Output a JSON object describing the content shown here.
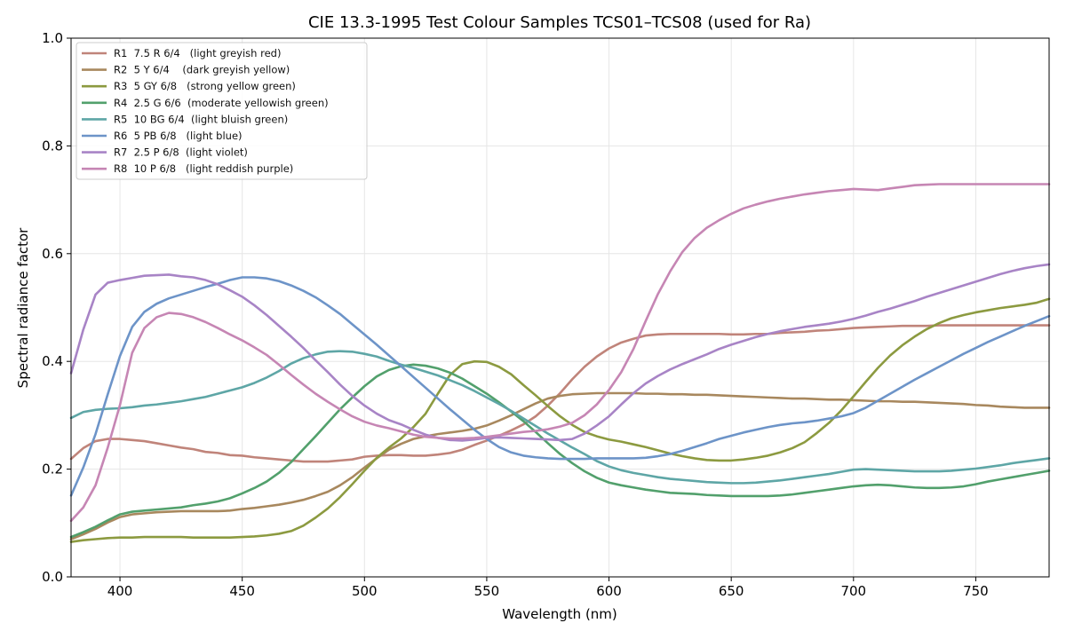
{
  "chart_data": {
    "type": "line",
    "title": "CIE 13.3-1995 Test Colour Samples TCS01–TCS08 (used for Ra)",
    "xlabel": "Wavelength (nm)",
    "ylabel": "Spectral radiance factor",
    "xlim": [
      380,
      780
    ],
    "ylim": [
      0.0,
      1.0
    ],
    "xticks": [
      400,
      450,
      500,
      550,
      600,
      650,
      700,
      750
    ],
    "yticks": [
      0.0,
      0.2,
      0.4,
      0.6,
      0.8,
      1.0
    ],
    "xtick_labels": [
      "400",
      "450",
      "500",
      "550",
      "600",
      "650",
      "700",
      "750"
    ],
    "ytick_labels": [
      "0.0",
      "0.2",
      "0.4",
      "0.6",
      "0.8",
      "1.0"
    ],
    "grid": true,
    "legend_position": "top-left",
    "x": [
      380,
      385,
      390,
      395,
      400,
      405,
      410,
      415,
      420,
      425,
      430,
      435,
      440,
      445,
      450,
      455,
      460,
      465,
      470,
      475,
      480,
      485,
      490,
      495,
      500,
      505,
      510,
      515,
      520,
      525,
      530,
      535,
      540,
      545,
      550,
      555,
      560,
      565,
      570,
      575,
      580,
      585,
      590,
      595,
      600,
      605,
      610,
      615,
      620,
      625,
      630,
      635,
      640,
      645,
      650,
      655,
      660,
      665,
      670,
      675,
      680,
      685,
      690,
      695,
      700,
      705,
      710,
      715,
      720,
      725,
      730,
      735,
      740,
      745,
      750,
      755,
      760,
      765,
      770,
      775,
      780
    ],
    "series": [
      {
        "name": "R1  7.5 R 6/4   (light greyish red)",
        "color": "#c0847a",
        "values": [
          0.219,
          0.239,
          0.252,
          0.256,
          0.256,
          0.254,
          0.252,
          0.248,
          0.244,
          0.24,
          0.237,
          0.232,
          0.23,
          0.226,
          0.225,
          0.222,
          0.22,
          0.218,
          0.216,
          0.214,
          0.214,
          0.214,
          0.216,
          0.218,
          0.223,
          0.225,
          0.226,
          0.226,
          0.225,
          0.225,
          0.227,
          0.23,
          0.236,
          0.245,
          0.253,
          0.262,
          0.272,
          0.283,
          0.298,
          0.318,
          0.341,
          0.367,
          0.39,
          0.409,
          0.424,
          0.435,
          0.442,
          0.448,
          0.45,
          0.451,
          0.451,
          0.451,
          0.451,
          0.451,
          0.45,
          0.45,
          0.451,
          0.451,
          0.453,
          0.454,
          0.455,
          0.457,
          0.458,
          0.46,
          0.462,
          0.463,
          0.464,
          0.465,
          0.466,
          0.466,
          0.466,
          0.467,
          0.467,
          0.467,
          0.467,
          0.467,
          0.467,
          0.467,
          0.467,
          0.467,
          0.467
        ]
      },
      {
        "name": "R2  5 Y 6/4    (dark greyish yellow)",
        "color": "#a8885e",
        "values": [
          0.07,
          0.079,
          0.089,
          0.101,
          0.111,
          0.116,
          0.118,
          0.12,
          0.121,
          0.122,
          0.122,
          0.122,
          0.122,
          0.123,
          0.126,
          0.128,
          0.131,
          0.134,
          0.138,
          0.143,
          0.15,
          0.158,
          0.17,
          0.185,
          0.203,
          0.22,
          0.236,
          0.247,
          0.256,
          0.261,
          0.265,
          0.268,
          0.271,
          0.275,
          0.281,
          0.29,
          0.3,
          0.311,
          0.322,
          0.331,
          0.336,
          0.339,
          0.34,
          0.341,
          0.341,
          0.341,
          0.341,
          0.34,
          0.34,
          0.339,
          0.339,
          0.338,
          0.338,
          0.337,
          0.336,
          0.335,
          0.334,
          0.333,
          0.332,
          0.331,
          0.331,
          0.33,
          0.329,
          0.329,
          0.328,
          0.327,
          0.326,
          0.326,
          0.325,
          0.325,
          0.324,
          0.323,
          0.322,
          0.321,
          0.319,
          0.318,
          0.316,
          0.315,
          0.314,
          0.314,
          0.314
        ]
      },
      {
        "name": "R3  5 GY 6/8   (strong yellow green)",
        "color": "#8c9a40",
        "values": [
          0.065,
          0.068,
          0.07,
          0.072,
          0.073,
          0.073,
          0.074,
          0.074,
          0.074,
          0.074,
          0.073,
          0.073,
          0.073,
          0.073,
          0.074,
          0.075,
          0.077,
          0.08,
          0.085,
          0.095,
          0.11,
          0.127,
          0.148,
          0.172,
          0.197,
          0.221,
          0.24,
          0.257,
          0.278,
          0.303,
          0.34,
          0.375,
          0.395,
          0.4,
          0.399,
          0.39,
          0.376,
          0.356,
          0.337,
          0.317,
          0.298,
          0.282,
          0.269,
          0.261,
          0.255,
          0.251,
          0.246,
          0.241,
          0.235,
          0.229,
          0.224,
          0.22,
          0.217,
          0.216,
          0.216,
          0.218,
          0.221,
          0.225,
          0.231,
          0.239,
          0.25,
          0.267,
          0.286,
          0.309,
          0.335,
          0.362,
          0.388,
          0.411,
          0.43,
          0.446,
          0.46,
          0.471,
          0.48,
          0.486,
          0.491,
          0.495,
          0.499,
          0.502,
          0.505,
          0.509,
          0.516
        ]
      },
      {
        "name": "R4  2.5 G 6/6  (moderate yellowish green)",
        "color": "#52a06c",
        "values": [
          0.074,
          0.083,
          0.093,
          0.105,
          0.116,
          0.121,
          0.123,
          0.125,
          0.127,
          0.129,
          0.133,
          0.136,
          0.14,
          0.146,
          0.155,
          0.165,
          0.177,
          0.193,
          0.213,
          0.237,
          0.261,
          0.286,
          0.311,
          0.333,
          0.354,
          0.372,
          0.384,
          0.391,
          0.394,
          0.392,
          0.387,
          0.379,
          0.368,
          0.354,
          0.34,
          0.324,
          0.307,
          0.289,
          0.269,
          0.248,
          0.228,
          0.211,
          0.196,
          0.184,
          0.175,
          0.17,
          0.166,
          0.162,
          0.159,
          0.156,
          0.155,
          0.154,
          0.152,
          0.151,
          0.15,
          0.15,
          0.15,
          0.15,
          0.151,
          0.153,
          0.156,
          0.159,
          0.162,
          0.165,
          0.168,
          0.17,
          0.171,
          0.17,
          0.168,
          0.166,
          0.165,
          0.165,
          0.166,
          0.168,
          0.172,
          0.177,
          0.181,
          0.185,
          0.189,
          0.193,
          0.197
        ]
      },
      {
        "name": "R5  10 BG 6/4  (light bluish green)",
        "color": "#5ea6a6",
        "values": [
          0.295,
          0.306,
          0.31,
          0.312,
          0.313,
          0.315,
          0.318,
          0.32,
          0.323,
          0.326,
          0.33,
          0.334,
          0.34,
          0.346,
          0.352,
          0.36,
          0.37,
          0.382,
          0.396,
          0.406,
          0.413,
          0.418,
          0.419,
          0.418,
          0.414,
          0.409,
          0.401,
          0.394,
          0.388,
          0.381,
          0.374,
          0.365,
          0.356,
          0.345,
          0.333,
          0.321,
          0.308,
          0.294,
          0.28,
          0.266,
          0.253,
          0.24,
          0.228,
          0.215,
          0.205,
          0.198,
          0.193,
          0.189,
          0.185,
          0.182,
          0.18,
          0.178,
          0.176,
          0.175,
          0.174,
          0.174,
          0.175,
          0.177,
          0.179,
          0.182,
          0.185,
          0.188,
          0.191,
          0.195,
          0.199,
          0.2,
          0.199,
          0.198,
          0.197,
          0.196,
          0.196,
          0.196,
          0.197,
          0.199,
          0.201,
          0.204,
          0.207,
          0.211,
          0.214,
          0.217,
          0.22
        ]
      },
      {
        "name": "R6  5 PB 6/8   (light blue)",
        "color": "#6d94c8",
        "values": [
          0.151,
          0.203,
          0.265,
          0.339,
          0.41,
          0.464,
          0.492,
          0.507,
          0.517,
          0.524,
          0.531,
          0.538,
          0.544,
          0.551,
          0.556,
          0.556,
          0.554,
          0.549,
          0.541,
          0.531,
          0.519,
          0.504,
          0.488,
          0.469,
          0.45,
          0.431,
          0.411,
          0.391,
          0.371,
          0.351,
          0.331,
          0.311,
          0.292,
          0.273,
          0.256,
          0.241,
          0.231,
          0.225,
          0.222,
          0.22,
          0.219,
          0.219,
          0.219,
          0.22,
          0.22,
          0.22,
          0.22,
          0.221,
          0.224,
          0.228,
          0.234,
          0.241,
          0.248,
          0.256,
          0.262,
          0.268,
          0.273,
          0.278,
          0.282,
          0.285,
          0.287,
          0.29,
          0.294,
          0.298,
          0.304,
          0.314,
          0.327,
          0.34,
          0.353,
          0.366,
          0.378,
          0.39,
          0.402,
          0.414,
          0.425,
          0.436,
          0.446,
          0.456,
          0.466,
          0.475,
          0.484
        ]
      },
      {
        "name": "R7  2.5 P 6/8  (light violet)",
        "color": "#a884c6",
        "values": [
          0.378,
          0.459,
          0.524,
          0.546,
          0.551,
          0.555,
          0.559,
          0.56,
          0.561,
          0.558,
          0.556,
          0.551,
          0.543,
          0.532,
          0.52,
          0.504,
          0.486,
          0.466,
          0.446,
          0.425,
          0.402,
          0.38,
          0.357,
          0.336,
          0.318,
          0.303,
          0.291,
          0.283,
          0.273,
          0.264,
          0.258,
          0.254,
          0.253,
          0.255,
          0.258,
          0.259,
          0.258,
          0.257,
          0.256,
          0.255,
          0.254,
          0.256,
          0.266,
          0.281,
          0.298,
          0.32,
          0.341,
          0.359,
          0.373,
          0.385,
          0.395,
          0.404,
          0.413,
          0.423,
          0.431,
          0.438,
          0.445,
          0.451,
          0.456,
          0.46,
          0.464,
          0.467,
          0.47,
          0.474,
          0.479,
          0.485,
          0.492,
          0.498,
          0.505,
          0.512,
          0.52,
          0.527,
          0.534,
          0.541,
          0.548,
          0.555,
          0.562,
          0.568,
          0.573,
          0.577,
          0.58
        ]
      },
      {
        "name": "R8  10 P 6/8   (light reddish purple)",
        "color": "#c686b4",
        "values": [
          0.104,
          0.129,
          0.17,
          0.24,
          0.319,
          0.416,
          0.462,
          0.482,
          0.49,
          0.488,
          0.482,
          0.473,
          0.462,
          0.45,
          0.439,
          0.426,
          0.412,
          0.394,
          0.375,
          0.357,
          0.34,
          0.325,
          0.311,
          0.298,
          0.288,
          0.281,
          0.276,
          0.27,
          0.264,
          0.26,
          0.258,
          0.257,
          0.257,
          0.258,
          0.26,
          0.263,
          0.266,
          0.269,
          0.271,
          0.274,
          0.279,
          0.286,
          0.3,
          0.32,
          0.347,
          0.38,
          0.423,
          0.475,
          0.525,
          0.567,
          0.603,
          0.629,
          0.648,
          0.662,
          0.674,
          0.684,
          0.691,
          0.697,
          0.702,
          0.706,
          0.71,
          0.713,
          0.716,
          0.718,
          0.72,
          0.719,
          0.718,
          0.721,
          0.724,
          0.727,
          0.728,
          0.729,
          0.729,
          0.729,
          0.729,
          0.729,
          0.729,
          0.729,
          0.729,
          0.729,
          0.729
        ]
      }
    ]
  }
}
